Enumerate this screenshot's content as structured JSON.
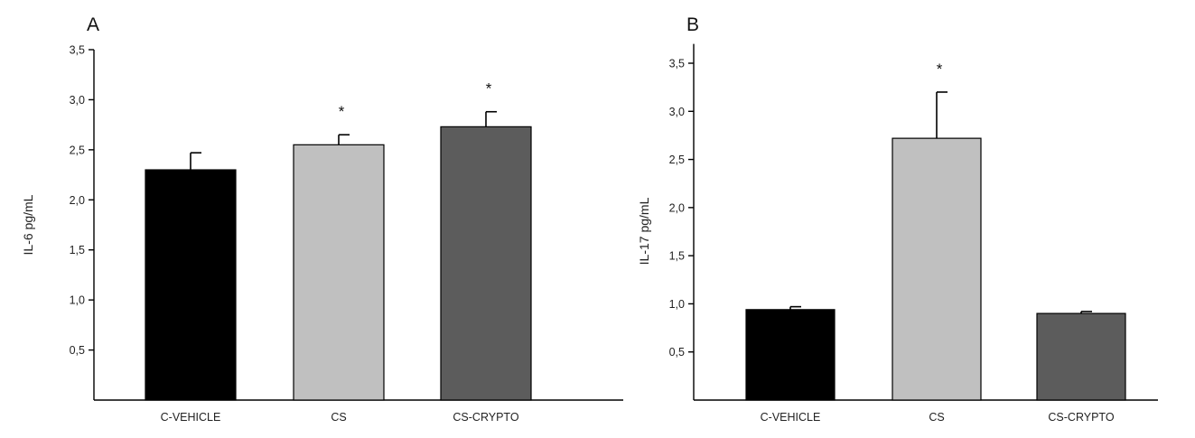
{
  "chart_data": [
    {
      "type": "bar",
      "panel": "A",
      "ylabel": "IL-6 pg/mL",
      "ylim": [
        0,
        3.5
      ],
      "yticks": [
        "0,5",
        "1,0",
        "1,5",
        "2,0",
        "2,5",
        "3,0",
        "3,5"
      ],
      "ytick_values": [
        0.5,
        1.0,
        1.5,
        2.0,
        2.5,
        3.0,
        3.5
      ],
      "categories": [
        "C-VEHICLE",
        "CS",
        "CS-CRYPTO"
      ],
      "values": [
        2.3,
        2.55,
        2.73
      ],
      "errors": [
        0.17,
        0.1,
        0.15
      ],
      "significance": [
        "",
        "*",
        "*"
      ],
      "bar_colors": [
        "#000000",
        "#c0c0c0",
        "#5c5c5c"
      ],
      "grid": false
    },
    {
      "type": "bar",
      "panel": "B",
      "ylabel": "IL-17 pg/mL",
      "ylim": [
        0,
        3.7
      ],
      "yticks": [
        "0,5",
        "1,0",
        "1,5",
        "2,0",
        "2,5",
        "3,0",
        "3,5"
      ],
      "ytick_values": [
        0.5,
        1.0,
        1.5,
        2.0,
        2.5,
        3.0,
        3.5
      ],
      "categories": [
        "C-VEHICLE",
        "CS",
        "CS-CRYPTO"
      ],
      "values": [
        0.94,
        2.72,
        0.9
      ],
      "errors": [
        0.03,
        0.48,
        0.02
      ],
      "significance": [
        "",
        "*",
        ""
      ],
      "bar_colors": [
        "#000000",
        "#c0c0c0",
        "#5c5c5c"
      ],
      "grid": false
    }
  ]
}
